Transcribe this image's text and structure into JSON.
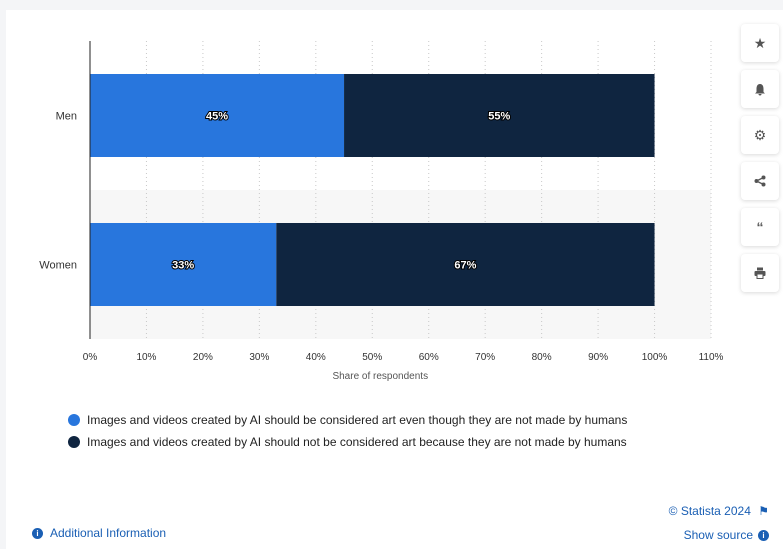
{
  "chart_data": {
    "type": "bar",
    "orientation": "horizontal",
    "stacked": true,
    "categories": [
      "Men",
      "Women"
    ],
    "series": [
      {
        "name": "Images and videos created by AI should be considered art even though they are not made by humans",
        "values": [
          45,
          33
        ],
        "labels": [
          "45%",
          "33%"
        ],
        "color": "#2876dd"
      },
      {
        "name": "Images and videos created by AI should not be considered art because they are not made by humans",
        "values": [
          55,
          67
        ],
        "labels": [
          "55%",
          "67%"
        ],
        "color": "#0f2540"
      }
    ],
    "xlabel": "Share of respondents",
    "xlim": [
      0,
      110
    ],
    "xticks": [
      "0%",
      "10%",
      "20%",
      "30%",
      "40%",
      "50%",
      "60%",
      "70%",
      "80%",
      "90%",
      "100%",
      "110%"
    ],
    "grid": true,
    "legend_position": "bottom"
  },
  "footer": {
    "credit": "© Statista 2024",
    "show_source": "Show source",
    "additional_info": "Additional Information"
  },
  "side_buttons": [
    "star-icon",
    "bell-icon",
    "gear-icon",
    "share-icon",
    "quote-icon",
    "print-icon"
  ]
}
